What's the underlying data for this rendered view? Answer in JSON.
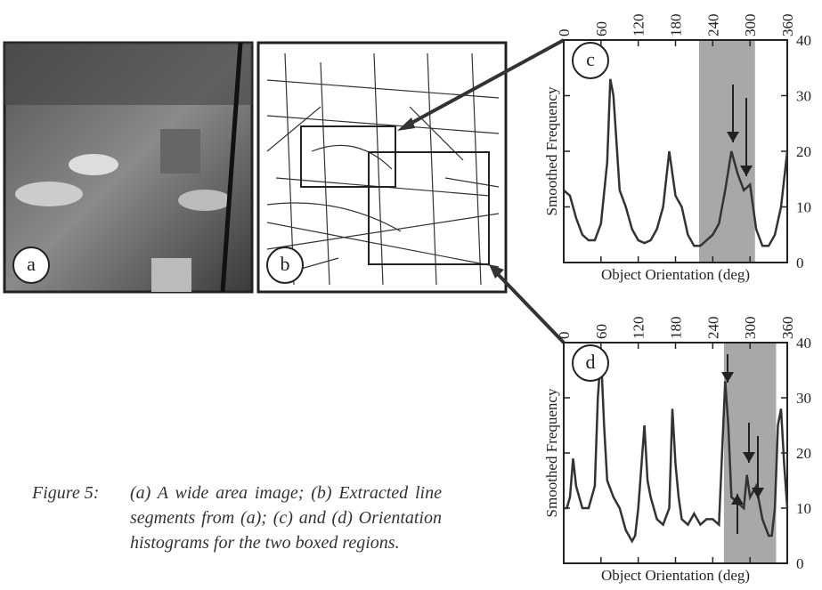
{
  "figure": {
    "panels": [
      "a",
      "b"
    ],
    "caption_label": "Figure 5:",
    "caption": "(a) A wide area image; (b) Extracted line segments from (a); (c) and (d) Orientation histograms for the two boxed regions."
  },
  "chart_data": [
    {
      "type": "line",
      "label": "c",
      "x": [
        0,
        10,
        20,
        30,
        40,
        50,
        60,
        70,
        75,
        80,
        90,
        100,
        110,
        120,
        130,
        140,
        150,
        160,
        170,
        180,
        190,
        200,
        210,
        220,
        230,
        240,
        250,
        260,
        270,
        280,
        290,
        300,
        310,
        320,
        330,
        340,
        350,
        360
      ],
      "series": [
        {
          "color": "#333333",
          "values": [
            13,
            12,
            8,
            5,
            4,
            4,
            7,
            18,
            33,
            30,
            13,
            10,
            6,
            4,
            3.5,
            4,
            6,
            10,
            20,
            12,
            10,
            5,
            3,
            3,
            4,
            5,
            7,
            13,
            20,
            16,
            13,
            14,
            6,
            3,
            3,
            5,
            10,
            20
          ]
        }
      ],
      "xlim": [
        0,
        360
      ],
      "xticks": [
        0,
        60,
        120,
        180,
        240,
        300,
        360
      ],
      "ylim": [
        0,
        40
      ],
      "yticks": [
        0,
        10,
        20,
        30,
        40
      ],
      "xlabel": "Object Orientation (deg)",
      "ylabel": "Smoothed Frequency",
      "shaded_range": [
        218,
        308
      ],
      "shade_color": "#a8a8a8"
    },
    {
      "type": "line",
      "label": "d",
      "x": [
        0,
        5,
        10,
        15,
        20,
        30,
        40,
        50,
        55,
        60,
        65,
        70,
        80,
        90,
        100,
        110,
        115,
        120,
        130,
        135,
        140,
        150,
        160,
        170,
        175,
        180,
        185,
        190,
        200,
        210,
        220,
        230,
        240,
        250,
        255,
        260,
        265,
        270,
        280,
        290,
        295,
        300,
        310,
        320,
        330,
        335,
        340,
        345,
        350,
        355,
        360
      ],
      "series": [
        {
          "color": "#333333",
          "values": [
            10,
            10,
            12,
            19,
            14,
            10,
            10,
            14,
            30,
            38,
            25,
            15,
            12,
            10,
            6,
            4,
            5,
            10,
            25,
            15,
            12,
            8,
            7,
            10,
            28,
            18,
            12,
            8,
            7,
            9,
            7,
            8,
            8,
            7,
            20,
            33,
            25,
            12,
            11,
            10,
            16,
            12,
            14,
            8,
            5,
            5,
            10,
            25,
            28,
            18,
            10
          ]
        }
      ],
      "xlim": [
        0,
        360
      ],
      "xticks": [
        0,
        60,
        120,
        180,
        240,
        300,
        360
      ],
      "ylim": [
        0,
        40
      ],
      "yticks": [
        0,
        10,
        20,
        30,
        40
      ],
      "xlabel": "Object Orientation (deg)",
      "ylabel": "Smoothed Frequency",
      "shaded_range": [
        258,
        342
      ],
      "shade_color": "#a8a8a8"
    }
  ]
}
